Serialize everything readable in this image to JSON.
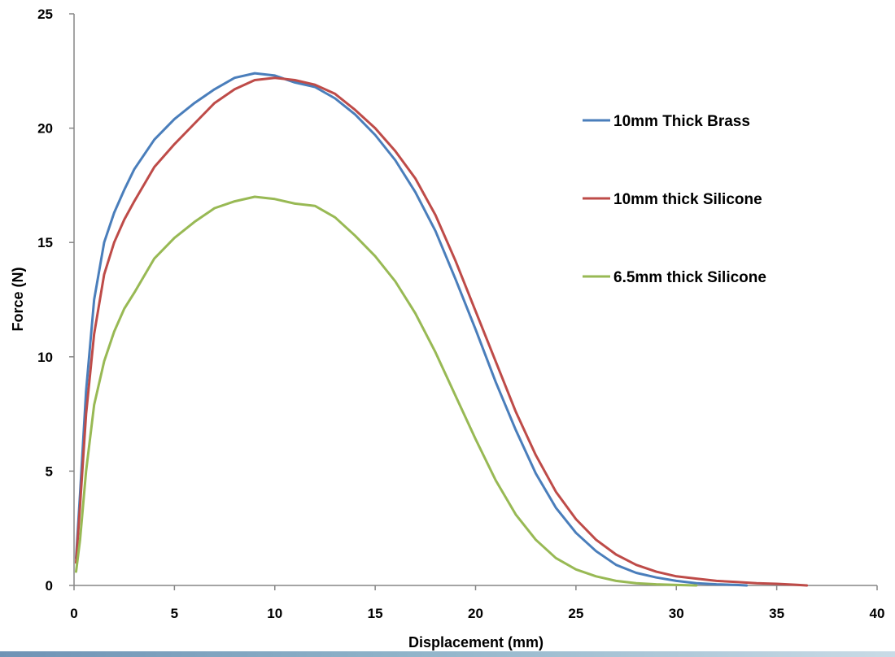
{
  "chart_data": {
    "type": "line",
    "xlabel": "Displacement (mm)",
    "ylabel": "Force (N)",
    "xlim": [
      0,
      40
    ],
    "ylim": [
      0,
      25
    ],
    "xticks": [
      0,
      5,
      10,
      15,
      20,
      25,
      30,
      35,
      40
    ],
    "yticks": [
      0,
      5,
      10,
      15,
      20,
      25
    ],
    "grid": false,
    "legend_position": "right",
    "series": [
      {
        "name": "10mm Thick Brass",
        "color": "#4a7ebb",
        "points": [
          [
            0.1,
            1.2
          ],
          [
            0.3,
            4.0
          ],
          [
            0.6,
            8.5
          ],
          [
            1,
            12.5
          ],
          [
            1.5,
            15.0
          ],
          [
            2,
            16.3
          ],
          [
            2.5,
            17.3
          ],
          [
            3,
            18.2
          ],
          [
            4,
            19.5
          ],
          [
            5,
            20.4
          ],
          [
            6,
            21.1
          ],
          [
            7,
            21.7
          ],
          [
            8,
            22.2
          ],
          [
            9,
            22.4
          ],
          [
            10,
            22.3
          ],
          [
            11,
            22.0
          ],
          [
            12,
            21.8
          ],
          [
            13,
            21.3
          ],
          [
            14,
            20.6
          ],
          [
            15,
            19.7
          ],
          [
            16,
            18.6
          ],
          [
            17,
            17.2
          ],
          [
            18,
            15.5
          ],
          [
            19,
            13.4
          ],
          [
            20,
            11.2
          ],
          [
            21,
            8.9
          ],
          [
            22,
            6.8
          ],
          [
            23,
            4.9
          ],
          [
            24,
            3.4
          ],
          [
            25,
            2.3
          ],
          [
            26,
            1.5
          ],
          [
            27,
            0.9
          ],
          [
            28,
            0.55
          ],
          [
            29,
            0.35
          ],
          [
            30,
            0.2
          ],
          [
            31,
            0.1
          ],
          [
            32,
            0.05
          ],
          [
            33,
            0.02
          ],
          [
            33.5,
            0.0
          ]
        ]
      },
      {
        "name": "10mm thick Silicone",
        "color": "#be4b48",
        "points": [
          [
            0.1,
            1.0
          ],
          [
            0.3,
            3.5
          ],
          [
            0.6,
            7.5
          ],
          [
            1,
            11.0
          ],
          [
            1.5,
            13.6
          ],
          [
            2,
            15.0
          ],
          [
            2.5,
            16.0
          ],
          [
            3,
            16.8
          ],
          [
            4,
            18.3
          ],
          [
            5,
            19.3
          ],
          [
            6,
            20.2
          ],
          [
            7,
            21.1
          ],
          [
            8,
            21.7
          ],
          [
            9,
            22.1
          ],
          [
            10,
            22.2
          ],
          [
            11,
            22.1
          ],
          [
            12,
            21.9
          ],
          [
            13,
            21.5
          ],
          [
            14,
            20.8
          ],
          [
            15,
            20.0
          ],
          [
            16,
            19.0
          ],
          [
            17,
            17.8
          ],
          [
            18,
            16.2
          ],
          [
            19,
            14.2
          ],
          [
            20,
            12.0
          ],
          [
            21,
            9.8
          ],
          [
            22,
            7.6
          ],
          [
            23,
            5.7
          ],
          [
            24,
            4.1
          ],
          [
            25,
            2.9
          ],
          [
            26,
            2.0
          ],
          [
            27,
            1.35
          ],
          [
            28,
            0.9
          ],
          [
            29,
            0.6
          ],
          [
            30,
            0.4
          ],
          [
            31,
            0.3
          ],
          [
            32,
            0.2
          ],
          [
            33,
            0.15
          ],
          [
            34,
            0.1
          ],
          [
            35,
            0.07
          ],
          [
            36,
            0.03
          ],
          [
            36.5,
            0.0
          ]
        ]
      },
      {
        "name": "6.5mm thick Silicone",
        "color": "#98b954",
        "points": [
          [
            0.1,
            0.6
          ],
          [
            0.3,
            2.0
          ],
          [
            0.6,
            5.0
          ],
          [
            1,
            7.9
          ],
          [
            1.5,
            9.8
          ],
          [
            2,
            11.1
          ],
          [
            2.5,
            12.1
          ],
          [
            3,
            12.8
          ],
          [
            4,
            14.3
          ],
          [
            5,
            15.2
          ],
          [
            6,
            15.9
          ],
          [
            7,
            16.5
          ],
          [
            8,
            16.8
          ],
          [
            9,
            17.0
          ],
          [
            10,
            16.9
          ],
          [
            11,
            16.7
          ],
          [
            12,
            16.6
          ],
          [
            13,
            16.1
          ],
          [
            14,
            15.3
          ],
          [
            15,
            14.4
          ],
          [
            16,
            13.3
          ],
          [
            17,
            11.9
          ],
          [
            18,
            10.2
          ],
          [
            19,
            8.3
          ],
          [
            20,
            6.4
          ],
          [
            21,
            4.6
          ],
          [
            22,
            3.1
          ],
          [
            23,
            2.0
          ],
          [
            24,
            1.2
          ],
          [
            25,
            0.7
          ],
          [
            26,
            0.4
          ],
          [
            27,
            0.2
          ],
          [
            28,
            0.1
          ],
          [
            29,
            0.05
          ],
          [
            30,
            0.02
          ],
          [
            31,
            0.0
          ]
        ]
      }
    ]
  }
}
